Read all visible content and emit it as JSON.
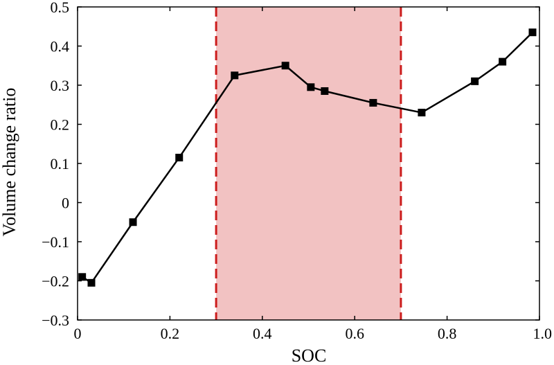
{
  "chart_data": {
    "type": "line",
    "title": "",
    "xlabel": "SOC",
    "ylabel": "Volume change ratio",
    "xlim": [
      0,
      1.0
    ],
    "ylim": [
      -0.3,
      0.5
    ],
    "x_ticks": [
      "0",
      "0.2",
      "0.4",
      "0.6",
      "0.8",
      "1.0"
    ],
    "y_ticks": [
      "-0.3",
      "-0.2",
      "-0.1",
      "0",
      "0.1",
      "0.2",
      "0.3",
      "0.4",
      "0.5"
    ],
    "grid": false,
    "series": [
      {
        "marker": "square",
        "color": "#000000",
        "x": [
          0.01,
          0.03,
          0.12,
          0.22,
          0.34,
          0.45,
          0.505,
          0.535,
          0.64,
          0.745,
          0.86,
          0.92,
          0.985
        ],
        "y": [
          -0.19,
          -0.205,
          -0.05,
          0.115,
          0.325,
          0.35,
          0.295,
          0.285,
          0.255,
          0.23,
          0.31,
          0.36,
          0.435
        ]
      }
    ],
    "highlight_band": {
      "x_range": [
        0.3,
        0.7
      ],
      "fill_color": "#f2c2c2",
      "line_color": "#cc1c1c",
      "line_style": "dashed"
    }
  }
}
